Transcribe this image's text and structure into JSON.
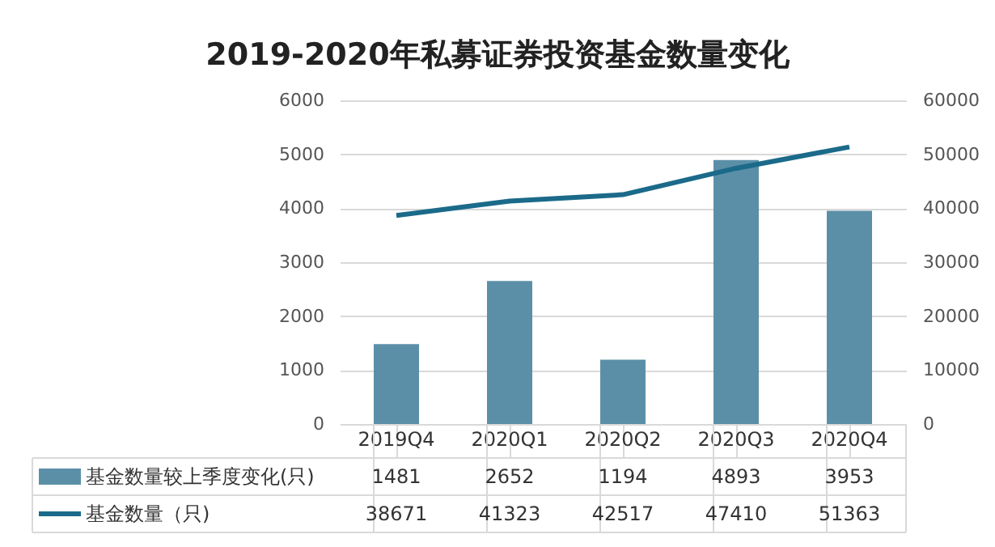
{
  "chart_data": {
    "type": "bar",
    "title": "2019-2020年私募证券投资基金数量变化",
    "categories": [
      "2019Q4",
      "2020Q1",
      "2020Q2",
      "2020Q3",
      "2020Q4"
    ],
    "series": [
      {
        "name": "基金数量较上季度变化(只)",
        "color": "#5b8fa8",
        "values": [
          1481,
          2652,
          1194,
          4893,
          3953
        ]
      },
      {
        "name": "基金数量（只)",
        "type": "line",
        "axis": "y2",
        "color": "#1b6a8a",
        "values": [
          38671,
          41323,
          42517,
          47410,
          51363
        ]
      }
    ],
    "ylim": [
      0,
      6000
    ],
    "yticks": [
      0,
      1000,
      2000,
      3000,
      4000,
      5000,
      6000
    ],
    "y2lim": [
      0,
      60000
    ],
    "y2ticks": [
      0,
      10000,
      20000,
      30000,
      40000,
      50000,
      60000
    ],
    "grid": "y",
    "legend": "bottom",
    "data_labels": true
  }
}
